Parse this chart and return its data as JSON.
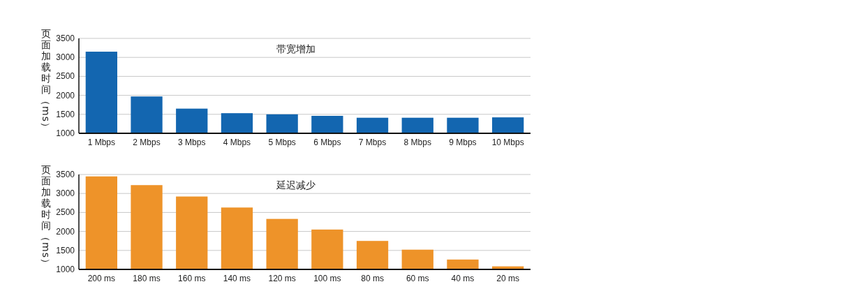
{
  "chart_data": [
    {
      "type": "bar",
      "title": "带宽增加",
      "ylabel": "页面加载时间（ms）",
      "categories": [
        "1 Mbps",
        "2 Mbps",
        "3 Mbps",
        "4 Mbps",
        "5 Mbps",
        "6 Mbps",
        "7 Mbps",
        "8 Mbps",
        "9 Mbps",
        "10 Mbps"
      ],
      "values": [
        3150,
        1970,
        1650,
        1530,
        1500,
        1460,
        1410,
        1410,
        1410,
        1420
      ],
      "color": "#1366b0",
      "ylim": [
        1000,
        3500
      ],
      "yticks": [
        1000,
        1500,
        2000,
        2500,
        3000,
        3500
      ],
      "grid": "y"
    },
    {
      "type": "bar",
      "title": "延迟减少",
      "ylabel": "页面加载时间（ms）",
      "categories": [
        "200 ms",
        "180 ms",
        "160 ms",
        "140 ms",
        "120 ms",
        "100 ms",
        "80 ms",
        "60 ms",
        "40 ms",
        "20 ms"
      ],
      "values": [
        3450,
        3220,
        2920,
        2630,
        2330,
        2050,
        1750,
        1520,
        1260,
        1080
      ],
      "color": "#ee9329",
      "ylim": [
        1000,
        3500
      ],
      "yticks": [
        1000,
        1500,
        2000,
        2500,
        3000,
        3500
      ],
      "grid": "y"
    }
  ]
}
